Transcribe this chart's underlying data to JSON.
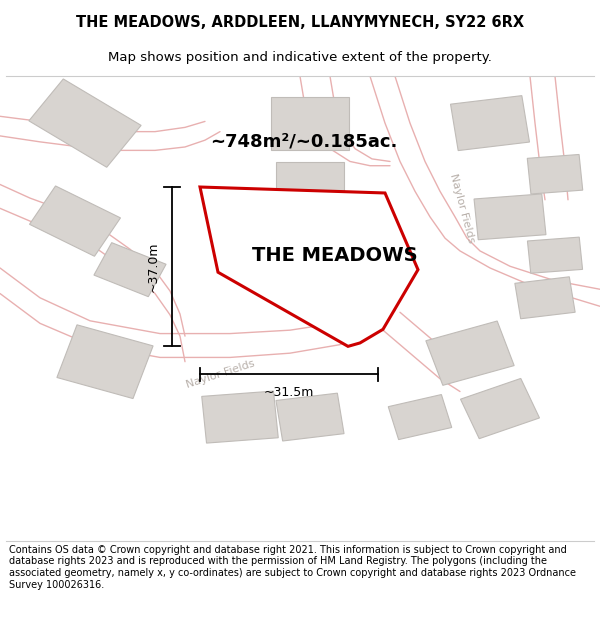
{
  "title": "THE MEADOWS, ARDDLEEN, LLANYMYNECH, SY22 6RX",
  "subtitle": "Map shows position and indicative extent of the property.",
  "footer": "Contains OS data © Crown copyright and database right 2021. This information is subject to Crown copyright and database rights 2023 and is reproduced with the permission of HM Land Registry. The polygons (including the associated geometry, namely x, y co-ordinates) are subject to Crown copyright and database rights 2023 Ordnance Survey 100026316.",
  "area_label": "~748m²/~0.185ac.",
  "plot_label": "THE MEADOWS",
  "dim_v": "~37.0m",
  "dim_h": "~31.5m",
  "road_label_bottom": "Naylor Fields",
  "road_label_right": "Naylor Fields",
  "map_bg": "#f5f2f0",
  "plot_fill": "#ffffff",
  "plot_edge": "#cc0000",
  "building_fill": "#d8d4d0",
  "building_edge": "#c0bcb8",
  "road_color": "#e8b0b0",
  "title_fontsize": 10.5,
  "subtitle_fontsize": 9.5,
  "footer_fontsize": 7.0,
  "area_fontsize": 13,
  "plot_label_fontsize": 14,
  "dim_fontsize": 9,
  "road_label_fontsize": 8
}
